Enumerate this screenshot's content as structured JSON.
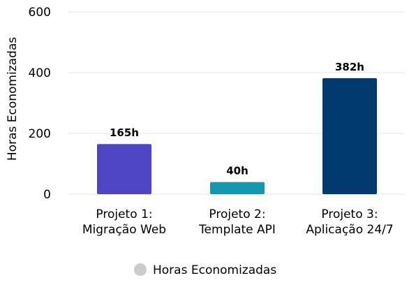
{
  "chart_data": {
    "type": "bar",
    "categories": [
      [
        "Projeto 1:",
        "Migração Web"
      ],
      [
        "Projeto 2:",
        "Template API"
      ],
      [
        "Projeto 3:",
        "Aplicação 24/7"
      ]
    ],
    "series": [
      {
        "name": "Horas Economizadas",
        "values": [
          165,
          40,
          382
        ],
        "data_labels": [
          "165h",
          "40h",
          "382h"
        ],
        "colors": [
          "#4f46c6",
          "#1497b1",
          "#003a6e"
        ]
      }
    ],
    "ylabel": "Horas Economizadas",
    "ylim": [
      0,
      600
    ],
    "yticks": [
      0,
      200,
      400,
      600
    ],
    "grid": true,
    "legend_position": "bottom-center",
    "legend_marker_color": "#cccccc",
    "gridline_color": "#e6e6e6"
  }
}
